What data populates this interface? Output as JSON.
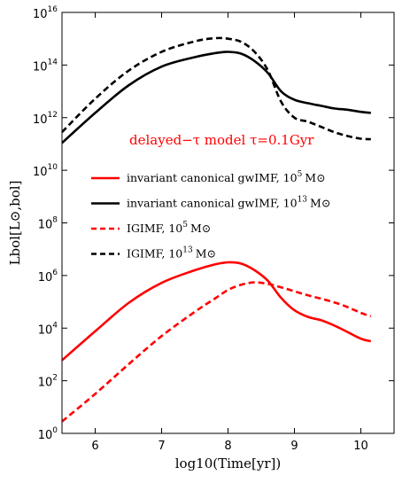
{
  "chart_data": {
    "type": "line",
    "xlabel": "log10(Time[yr])",
    "ylabel": "Lbol[L⊙,bol]",
    "xlim": [
      5.5,
      10.5
    ],
    "ylim_log10": [
      0,
      16
    ],
    "y_scale": "log",
    "x_ticks": [
      {
        "v": 6,
        "label": "6"
      },
      {
        "v": 7,
        "label": "7"
      },
      {
        "v": 8,
        "label": "8"
      },
      {
        "v": 9,
        "label": "9"
      },
      {
        "v": 10,
        "label": "10"
      }
    ],
    "y_ticks": [
      {
        "v": 0,
        "base": "10",
        "exp": "0"
      },
      {
        "v": 2,
        "base": "10",
        "exp": "2"
      },
      {
        "v": 4,
        "base": "10",
        "exp": "4"
      },
      {
        "v": 6,
        "base": "10",
        "exp": "6"
      },
      {
        "v": 8,
        "base": "10",
        "exp": "8"
      },
      {
        "v": 10,
        "base": "10",
        "exp": "10"
      },
      {
        "v": 12,
        "base": "10",
        "exp": "12"
      },
      {
        "v": 14,
        "base": "10",
        "exp": "14"
      },
      {
        "v": 16,
        "base": "10",
        "exp": "16"
      }
    ],
    "annotation": {
      "text": "delayed−τ model τ=0.1Gyr",
      "color": "#ff0000"
    },
    "legend_position": "center-left",
    "series": [
      {
        "name": "invariant canonical gwIMF, 10^5 M⊙",
        "color": "#ff0000",
        "dash": "solid",
        "x": [
          5.5,
          6.0,
          6.5,
          7.0,
          7.5,
          7.8,
          8.0,
          8.2,
          8.4,
          8.6,
          8.8,
          9.0,
          9.2,
          9.4,
          9.6,
          9.8,
          10.0,
          10.15
        ],
        "y_log10": [
          2.78,
          3.88,
          4.95,
          5.72,
          6.2,
          6.42,
          6.5,
          6.45,
          6.2,
          5.8,
          5.15,
          4.68,
          4.43,
          4.3,
          4.1,
          3.85,
          3.6,
          3.5
        ]
      },
      {
        "name": "invariant canonical gwIMF, 10^13 M⊙",
        "color": "#000000",
        "dash": "solid",
        "x": [
          5.5,
          6.0,
          6.5,
          7.0,
          7.5,
          7.8,
          8.0,
          8.2,
          8.4,
          8.6,
          8.8,
          9.0,
          9.2,
          9.4,
          9.6,
          9.8,
          10.0,
          10.15
        ],
        "y_log10": [
          11.04,
          12.18,
          13.22,
          13.94,
          14.3,
          14.45,
          14.5,
          14.43,
          14.15,
          13.7,
          13.0,
          12.68,
          12.55,
          12.45,
          12.35,
          12.3,
          12.22,
          12.18
        ]
      },
      {
        "name": "IGIMF, 10^5 M⊙",
        "color": "#ff0000",
        "dash": "dashed",
        "x": [
          5.5,
          6.0,
          6.5,
          7.0,
          7.5,
          7.8,
          8.0,
          8.2,
          8.4,
          8.6,
          8.8,
          9.0,
          9.2,
          9.4,
          9.6,
          9.8,
          10.0,
          10.15
        ],
        "y_log10": [
          0.45,
          1.5,
          2.62,
          3.7,
          4.62,
          5.12,
          5.45,
          5.65,
          5.74,
          5.68,
          5.55,
          5.4,
          5.25,
          5.12,
          4.98,
          4.8,
          4.58,
          4.45
        ]
      },
      {
        "name": "IGIMF, 10^13 M⊙",
        "color": "#000000",
        "dash": "dashed",
        "x": [
          5.5,
          6.0,
          6.5,
          7.0,
          7.5,
          7.8,
          8.0,
          8.2,
          8.4,
          8.6,
          8.8,
          9.0,
          9.2,
          9.4,
          9.6,
          9.8,
          10.0,
          10.15
        ],
        "y_log10": [
          11.45,
          12.72,
          13.78,
          14.5,
          14.9,
          15.02,
          15.0,
          14.88,
          14.5,
          13.8,
          12.6,
          12.0,
          11.85,
          11.65,
          11.45,
          11.3,
          11.2,
          11.18
        ]
      }
    ],
    "legend_items": [
      {
        "text": "invariant canonical gwIMF,  10",
        "sup": "5",
        "unit": "M⊙",
        "color": "#ff0000",
        "dash": "solid"
      },
      {
        "text": "invariant canonical gwIMF,  10",
        "sup": "13",
        "unit": "M⊙",
        "color": "#000000",
        "dash": "solid"
      },
      {
        "text": "IGIMF,  10",
        "sup": "5",
        "unit": "M⊙",
        "color": "#ff0000",
        "dash": "dashed"
      },
      {
        "text": "IGIMF,  10",
        "sup": "13",
        "unit": "M⊙",
        "color": "#000000",
        "dash": "dashed"
      }
    ]
  }
}
